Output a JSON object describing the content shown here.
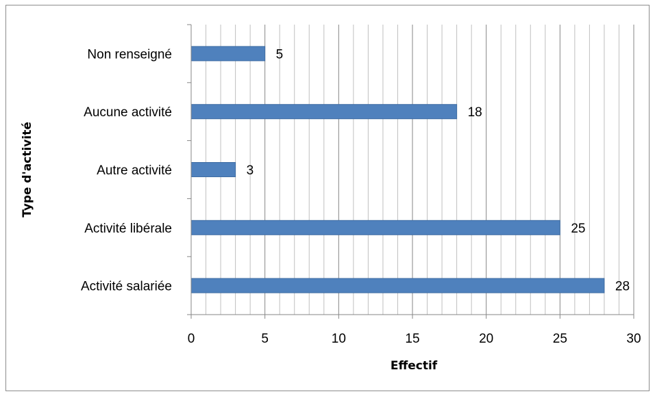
{
  "chart_data": {
    "type": "bar",
    "orientation": "horizontal",
    "categories": [
      "Activité salariée",
      "Activité libérale",
      "Autre activité",
      "Aucune activité",
      "Non renseigné"
    ],
    "values": [
      28,
      25,
      3,
      18,
      5
    ],
    "title": "",
    "xlabel": "Effectif",
    "ylabel": "Type d'activité",
    "xlim": [
      0,
      30
    ],
    "x_major_ticks": [
      0,
      5,
      10,
      15,
      20,
      25,
      30
    ],
    "x_minor_step": 1,
    "grid": true,
    "legend": "none",
    "data_labels": true,
    "colors": {
      "bar": "#4f81bd",
      "bar_edge": "#3f6da3",
      "major_grid": "#868686",
      "minor_grid": "#bfbfbf",
      "axis": "#868686"
    }
  }
}
